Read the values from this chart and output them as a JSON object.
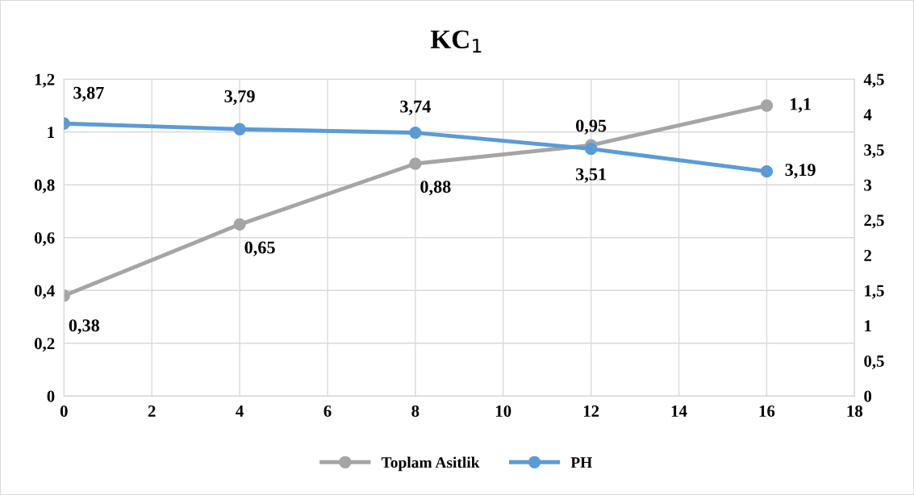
{
  "chart_data": {
    "type": "line",
    "title": "KC$_{1}$",
    "x": [
      0,
      4,
      8,
      12,
      16
    ],
    "series": [
      {
        "name": "Toplam Asitlik",
        "color": "#a5a5a5",
        "values": [
          0.38,
          0.65,
          0.88,
          0.95,
          1.1
        ],
        "value_labels": [
          "0,38",
          "0,65",
          "0,88",
          "0,95",
          "1,1"
        ]
      },
      {
        "name": "PH",
        "color": "#5b9bd5",
        "axis": "y2",
        "values": [
          3.87,
          3.79,
          3.74,
          3.51,
          3.19
        ],
        "value_labels": [
          "3,87",
          "3,79",
          "3,74",
          "3,51",
          "3,19"
        ]
      }
    ],
    "xlim": [
      0,
      18
    ],
    "xticks": [
      0,
      2,
      4,
      6,
      8,
      10,
      12,
      14,
      16,
      18
    ],
    "ylim": [
      0,
      1.2
    ],
    "yticks": [
      0,
      {
        "value": 0.2,
        "label": "0,2"
      },
      {
        "value": 0.4,
        "label": "0,4"
      },
      {
        "value": 0.6,
        "label": "0,6"
      },
      {
        "value": 0.8,
        "label": "0,8"
      },
      1,
      {
        "value": 1.2,
        "label": "1,2"
      }
    ],
    "y2lim": [
      0,
      4.5
    ],
    "y2ticks": [
      0,
      {
        "value": 0.5,
        "label": "0,5"
      },
      1,
      {
        "value": 1.5,
        "label": "1,5"
      },
      2,
      {
        "value": 2.5,
        "label": "2,5"
      },
      3,
      {
        "value": 3.5,
        "label": "3,5"
      },
      4,
      {
        "value": 4.5,
        "label": "4,5"
      }
    ],
    "grid": true,
    "legend": "bottom",
    "marker": "circle",
    "line_style": "solid"
  }
}
